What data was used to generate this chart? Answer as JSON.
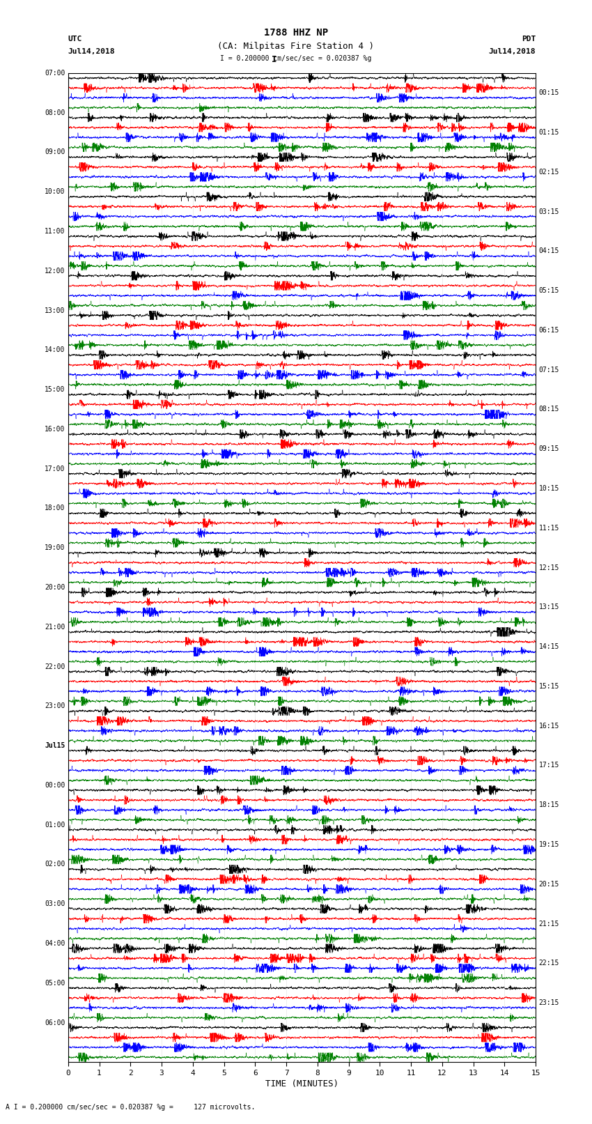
{
  "title_line1": "1788 HHZ NP",
  "title_line2": "(CA: Milpitas Fire Station 4 )",
  "label_utc": "UTC",
  "label_pdt": "PDT",
  "date_left": "Jul14,2018",
  "date_right": "Jul14,2018",
  "scale_text": "I = 0.200000 cm/sec/sec = 0.020387 %g",
  "bottom_text": "A I = 0.200000 cm/sec/sec = 0.020387 %g =     127 microvolts.",
  "xlabel": "TIME (MINUTES)",
  "xlim": [
    0,
    15
  ],
  "xticks": [
    0,
    1,
    2,
    3,
    4,
    5,
    6,
    7,
    8,
    9,
    10,
    11,
    12,
    13,
    14,
    15
  ],
  "fig_width": 8.5,
  "fig_height": 16.13,
  "dpi": 100,
  "colors": [
    "black",
    "red",
    "blue",
    "green"
  ],
  "background_color": "white",
  "left_times": [
    "07:00",
    "08:00",
    "09:00",
    "10:00",
    "11:00",
    "12:00",
    "13:00",
    "14:00",
    "15:00",
    "16:00",
    "17:00",
    "18:00",
    "19:00",
    "20:00",
    "21:00",
    "22:00",
    "23:00",
    "Jul15",
    "00:00",
    "01:00",
    "02:00",
    "03:00",
    "04:00",
    "05:00",
    "06:00"
  ],
  "right_times": [
    "00:15",
    "01:15",
    "02:15",
    "03:15",
    "04:15",
    "05:15",
    "06:15",
    "07:15",
    "08:15",
    "09:15",
    "10:15",
    "11:15",
    "12:15",
    "13:15",
    "14:15",
    "15:15",
    "16:15",
    "17:15",
    "18:15",
    "19:15",
    "20:15",
    "21:15",
    "22:15",
    "23:15"
  ],
  "n_rows": 25,
  "traces_per_row": 4,
  "seed": 12345
}
